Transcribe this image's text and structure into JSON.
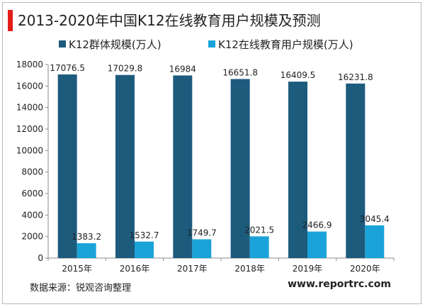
{
  "chart_data": {
    "type": "bar",
    "title": "2013-2020年中国K12在线教育用户规模及预测",
    "categories": [
      "2015年",
      "2016年",
      "2017年",
      "2018年",
      "2019年",
      "2020年"
    ],
    "series": [
      {
        "name": "K12群体规模(万人)",
        "color": "#1d5b7d",
        "values": [
          17076.5,
          17029.8,
          16984,
          16651.8,
          16409.5,
          16231.8
        ],
        "labels": [
          "17076.5",
          "17029.8",
          "16984",
          "16651.8",
          "16409.5",
          "16231.8"
        ]
      },
      {
        "name": "K12在线教育用户规模(万人)",
        "color": "#1aa3d9",
        "values": [
          1383.2,
          1532.7,
          1749.7,
          2021.5,
          2466.9,
          3045.4
        ],
        "labels": [
          "1383.2",
          "1532.7",
          "1749.7",
          "2021.5",
          "2466.9",
          "3045.4"
        ]
      }
    ],
    "ylim": [
      0,
      18000
    ],
    "yticks": [
      "0",
      "2000",
      "4000",
      "6000",
      "8000",
      "10000",
      "12000",
      "14000",
      "16000",
      "18000"
    ],
    "xlabel": "",
    "ylabel": "",
    "grid": false,
    "legend_position": "top"
  },
  "footer": {
    "source": "数据来源：锐观咨询整理",
    "website": "www.reportrc.com"
  }
}
